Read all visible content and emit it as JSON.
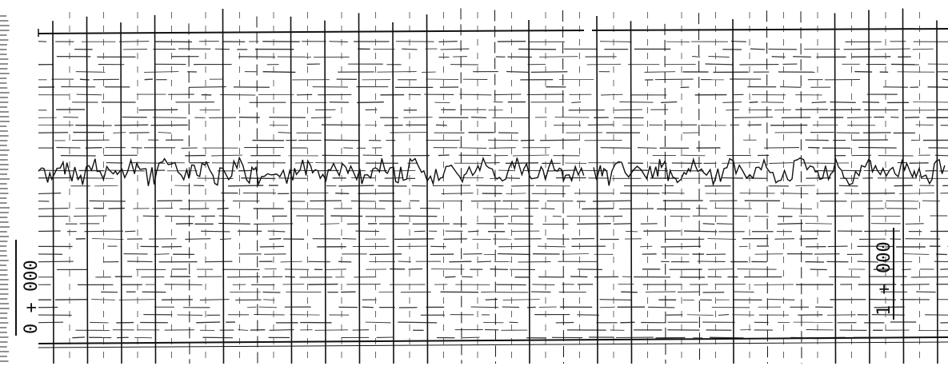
{
  "station_labels": [
    "0 + 000",
    "1 + 000"
  ]
}
